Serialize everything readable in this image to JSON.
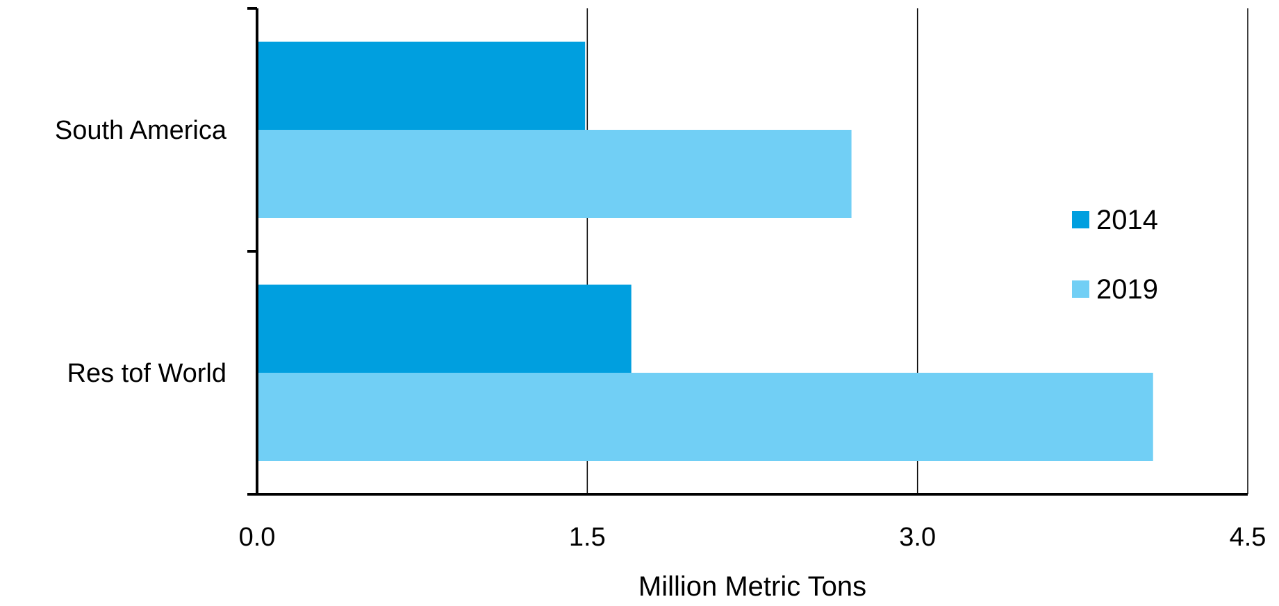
{
  "chart_data": {
    "type": "bar",
    "orientation": "horizontal",
    "categories": [
      "South America",
      "Res tof World"
    ],
    "series": [
      {
        "name": "2014",
        "values": [
          1.49,
          1.7
        ],
        "color": "#009FDF"
      },
      {
        "name": "2019",
        "values": [
          2.7,
          4.07
        ],
        "color": "#71CFF5"
      }
    ],
    "xlim": [
      0,
      4.5
    ],
    "xticks": [
      "0.0",
      "1.5",
      "3.0",
      "4.5"
    ],
    "xlabel": "Million Metric Tons",
    "ylabel": "",
    "title": "",
    "grid": "vertical",
    "legend_position": "right"
  }
}
